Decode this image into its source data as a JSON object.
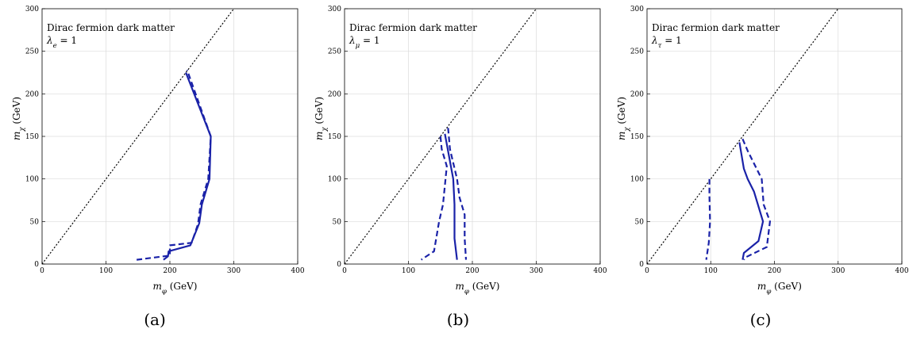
{
  "chart_data": [
    {
      "type": "line",
      "panel_label": "(a)",
      "annotation_title": "Dirac fermion dark matter",
      "annotation_coupling": "λ_e = 1",
      "xlabel": "m_φ (GeV)",
      "ylabel": "m_χ (GeV)",
      "xlim": [
        0,
        400
      ],
      "ylim": [
        0,
        300
      ],
      "xticks": [
        0,
        100,
        200,
        300,
        400
      ],
      "yticks": [
        0,
        50,
        100,
        150,
        200,
        250,
        300
      ],
      "grid": true,
      "diagonal": [
        [
          0,
          0
        ],
        [
          300,
          300
        ]
      ],
      "series": [
        {
          "style": "solid",
          "x": [
            190,
            197,
            198,
            232,
            246,
            250,
            262,
            264,
            225
          ],
          "y": [
            5,
            9,
            15,
            22,
            48,
            70,
            100,
            150,
            225
          ]
        },
        {
          "style": "dashed",
          "x": [
            148,
            200,
            200,
            234,
            244,
            248,
            260,
            264,
            227
          ],
          "y": [
            5,
            10,
            22,
            25,
            47,
            70,
            100,
            150,
            228
          ]
        }
      ]
    },
    {
      "type": "line",
      "panel_label": "(b)",
      "annotation_title": "Dirac fermion dark matter",
      "annotation_coupling": "λ_μ = 1",
      "xlabel": "m_φ (GeV)",
      "ylabel": "m_χ (GeV)",
      "xlim": [
        0,
        400
      ],
      "ylim": [
        0,
        300
      ],
      "xticks": [
        0,
        100,
        200,
        300,
        400
      ],
      "yticks": [
        0,
        50,
        100,
        150,
        200,
        250,
        300
      ],
      "grid": true,
      "diagonal": [
        [
          0,
          0
        ],
        [
          300,
          300
        ]
      ],
      "series": [
        {
          "style": "solid",
          "x": [
            157,
            170,
            172,
            172,
            176
          ],
          "y": [
            153,
            100,
            70,
            30,
            5
          ]
        },
        {
          "style": "dashed",
          "x": [
            150,
            152,
            160,
            158,
            154,
            148,
            140,
            120
          ],
          "y": [
            150,
            135,
            115,
            100,
            70,
            50,
            15,
            5
          ]
        },
        {
          "style": "dashed",
          "x": [
            162,
            165,
            176,
            180,
            188,
            188,
            190
          ],
          "y": [
            160,
            135,
            100,
            78,
            58,
            30,
            5
          ]
        }
      ]
    },
    {
      "type": "line",
      "panel_label": "(c)",
      "annotation_title": "Dirac fermion dark matter",
      "annotation_coupling": "λ_τ = 1",
      "xlabel": "m_φ (GeV)",
      "ylabel": "m_χ (GeV)",
      "xlim": [
        0,
        400
      ],
      "ylim": [
        0,
        300
      ],
      "xticks": [
        0,
        100,
        200,
        300,
        400
      ],
      "yticks": [
        0,
        50,
        100,
        150,
        200,
        250,
        300
      ],
      "grid": true,
      "diagonal": [
        [
          0,
          0
        ],
        [
          300,
          300
        ]
      ],
      "series": [
        {
          "style": "solid",
          "x": [
            145,
            152,
            158,
            168,
            182,
            175,
            152,
            150
          ],
          "y": [
            143,
            112,
            100,
            85,
            50,
            27,
            13,
            5
          ]
        },
        {
          "style": "dashed",
          "x": [
            98,
            98,
            99,
            97,
            93
          ],
          "y": [
            100,
            80,
            50,
            25,
            5
          ]
        },
        {
          "style": "dashed",
          "x": [
            150,
            158,
            180,
            183,
            193,
            188,
            155,
            152
          ],
          "y": [
            147,
            133,
            100,
            70,
            50,
            20,
            8,
            5
          ]
        }
      ]
    }
  ]
}
